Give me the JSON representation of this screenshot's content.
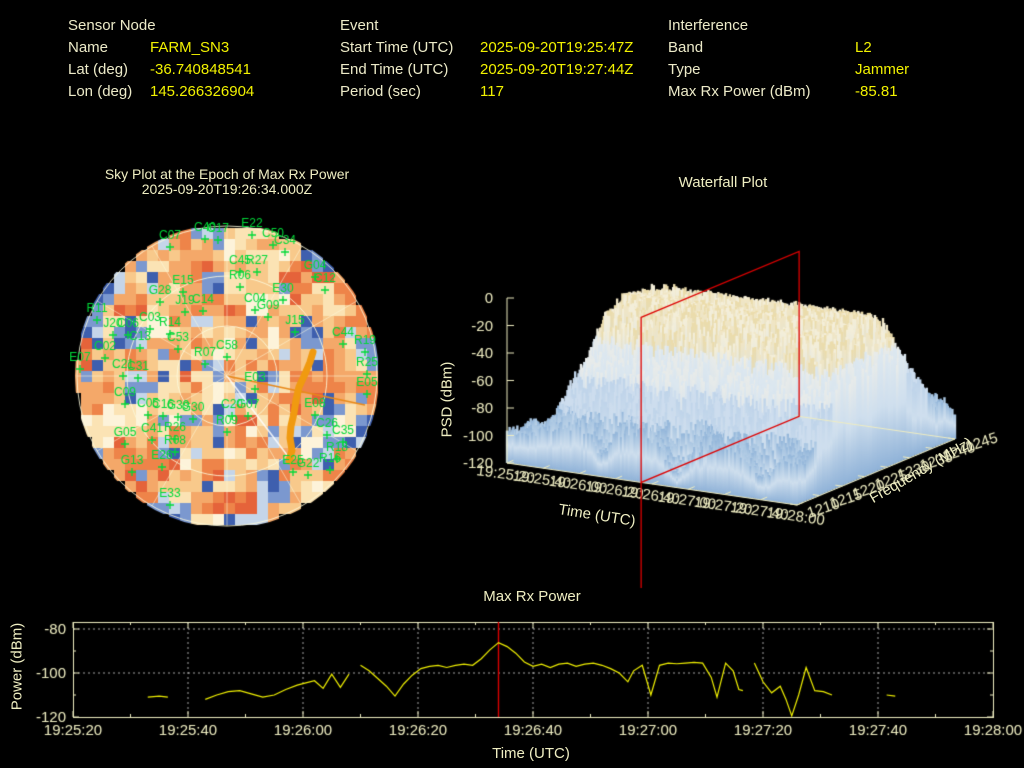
{
  "colors": {
    "background": "#000000",
    "text": "#efeec2",
    "value": "#f2f200",
    "satellite_label": "#00d938",
    "series_line": "#f0f000",
    "epoch_marker": "#dd0000",
    "trail": "#f09a10",
    "surface_low": "#8fb2d8",
    "surface_high": "#f1e6c4"
  },
  "header": {
    "sensor": {
      "title": "Sensor Node",
      "rows": [
        {
          "label": "Name",
          "value": "FARM_SN3"
        },
        {
          "label": "Lat (deg)",
          "value": "-36.740848541"
        },
        {
          "label": "Lon (deg)",
          "value": "145.266326904"
        }
      ]
    },
    "event": {
      "title": "Event",
      "rows": [
        {
          "label": "Start Time (UTC)",
          "value": "2025-09-20T19:25:47Z"
        },
        {
          "label": "End Time (UTC)",
          "value": "2025-09-20T19:27:44Z"
        },
        {
          "label": "Period (sec)",
          "value": "117"
        }
      ]
    },
    "interference": {
      "title": "Interference",
      "rows": [
        {
          "label": "Band",
          "value": "L2"
        },
        {
          "label": "Type",
          "value": "Jammer"
        },
        {
          "label": "Max Rx Power (dBm)",
          "value": "-85.81"
        }
      ]
    }
  },
  "skyplot": {
    "title_line1": "Sky Plot at the Epoch of Max Rx Power",
    "title_line2": "2025-09-20T19:26:34.000Z"
  },
  "waterfall": {
    "title": "Waterfall Plot",
    "ylabel": "PSD (dBm)",
    "xlabel": "Time (UTC)",
    "zlabel": "Frequency (MHz)"
  },
  "bottom": {
    "title": "Max Rx Power",
    "ylabel": "Power (dBm)",
    "xlabel": "Time (UTC)"
  },
  "chart_data": [
    {
      "name": "sky_plot",
      "type": "polar-heatmap",
      "title": "Sky Plot at the Epoch of Max Rx Power",
      "subtitle": "2025-09-20T19:26:34.000Z",
      "elevation_rings_deg": [
        30,
        60
      ],
      "azimuth_spokes_deg": 30,
      "satellites": [
        {
          "id": "C07",
          "x": 100,
          "y": 18
        },
        {
          "id": "C40",
          "x": 135,
          "y": 10
        },
        {
          "id": "C17",
          "x": 148,
          "y": 11
        },
        {
          "id": "E22",
          "x": 182,
          "y": 6
        },
        {
          "id": "C50",
          "x": 203,
          "y": 16
        },
        {
          "id": "C34",
          "x": 215,
          "y": 23
        },
        {
          "id": "C45",
          "x": 170,
          "y": 43
        },
        {
          "id": "R27",
          "x": 187,
          "y": 43
        },
        {
          "id": "R06",
          "x": 170,
          "y": 58
        },
        {
          "id": "E15",
          "x": 113,
          "y": 63
        },
        {
          "id": "G28",
          "x": 90,
          "y": 73
        },
        {
          "id": "J19",
          "x": 115,
          "y": 83
        },
        {
          "id": "C14",
          "x": 133,
          "y": 82
        },
        {
          "id": "G04",
          "x": 245,
          "y": 48
        },
        {
          "id": "C12",
          "x": 255,
          "y": 61
        },
        {
          "id": "E30",
          "x": 213,
          "y": 71
        },
        {
          "id": "C04",
          "x": 185,
          "y": 81
        },
        {
          "id": "G09",
          "x": 198,
          "y": 88
        },
        {
          "id": "J15",
          "x": 225,
          "y": 103
        },
        {
          "id": "R11",
          "x": 27,
          "y": 91
        },
        {
          "id": "J20",
          "x": 43,
          "y": 106
        },
        {
          "id": "C06",
          "x": 58,
          "y": 106
        },
        {
          "id": "C03",
          "x": 80,
          "y": 100
        },
        {
          "id": "R14",
          "x": 100,
          "y": 105
        },
        {
          "id": "C02",
          "x": 35,
          "y": 129
        },
        {
          "id": "E07",
          "x": 10,
          "y": 140
        },
        {
          "id": "C13",
          "x": 70,
          "y": 119
        },
        {
          "id": "C53",
          "x": 108,
          "y": 120
        },
        {
          "id": "C21",
          "x": 53,
          "y": 147
        },
        {
          "id": "C31",
          "x": 68,
          "y": 149
        },
        {
          "id": "R07",
          "x": 135,
          "y": 135
        },
        {
          "id": "C58",
          "x": 157,
          "y": 128
        },
        {
          "id": "E03",
          "x": 185,
          "y": 160
        },
        {
          "id": "E05",
          "x": 297,
          "y": 165
        },
        {
          "id": "C44",
          "x": 273,
          "y": 115
        },
        {
          "id": "R19",
          "x": 295,
          "y": 123
        },
        {
          "id": "R25",
          "x": 297,
          "y": 145
        },
        {
          "id": "C20",
          "x": 162,
          "y": 187
        },
        {
          "id": "G07",
          "x": 178,
          "y": 187
        },
        {
          "id": "E08",
          "x": 245,
          "y": 186
        },
        {
          "id": "R09",
          "x": 157,
          "y": 203
        },
        {
          "id": "C26",
          "x": 257,
          "y": 206
        },
        {
          "id": "C35",
          "x": 273,
          "y": 213
        },
        {
          "id": "R18",
          "x": 267,
          "y": 230
        },
        {
          "id": "R16",
          "x": 260,
          "y": 241
        },
        {
          "id": "E25",
          "x": 223,
          "y": 243
        },
        {
          "id": "G22",
          "x": 238,
          "y": 246
        },
        {
          "id": "C09",
          "x": 55,
          "y": 175
        },
        {
          "id": "C05",
          "x": 78,
          "y": 186
        },
        {
          "id": "C16",
          "x": 93,
          "y": 187
        },
        {
          "id": "G39",
          "x": 108,
          "y": 188
        },
        {
          "id": "G30",
          "x": 123,
          "y": 190
        },
        {
          "id": "G05",
          "x": 55,
          "y": 215
        },
        {
          "id": "C41",
          "x": 82,
          "y": 211
        },
        {
          "id": "R26",
          "x": 105,
          "y": 210
        },
        {
          "id": "R08",
          "x": 105,
          "y": 223
        },
        {
          "id": "E26",
          "x": 92,
          "y": 238
        },
        {
          "id": "G13",
          "x": 62,
          "y": 243
        },
        {
          "id": "E33",
          "x": 100,
          "y": 276
        }
      ],
      "jammer_trail": [
        [
          243,
          135
        ],
        [
          240,
          145
        ],
        [
          235,
          157
        ],
        [
          229,
          170
        ],
        [
          226,
          183
        ],
        [
          224,
          196
        ],
        [
          221,
          209
        ],
        [
          220,
          221
        ],
        [
          222,
          233
        ],
        [
          219,
          244
        ]
      ],
      "bearing_line_end": [
        295,
        188
      ],
      "white_line_end": [
        217,
        238
      ]
    },
    {
      "name": "waterfall",
      "type": "surface",
      "title": "Waterfall Plot",
      "xlabel": "Time (UTC)",
      "ylabel": "PSD (dBm)",
      "zlabel": "Frequency (MHz)",
      "psd_ticks": [
        0,
        -20,
        -40,
        -60,
        -80,
        -100,
        -120
      ],
      "time_ticks": [
        "19:25:20",
        "19:25:40",
        "19:26:00",
        "19:26:20",
        "19:26:40",
        "19:27:00",
        "19:27:20",
        "19:27:40",
        "19:28:00"
      ],
      "freq_ticks": [
        1210,
        1215,
        1220,
        1225,
        1230,
        1235,
        1240,
        1245
      ],
      "psd_range": [
        -120,
        0
      ],
      "noise_floor_dbm": -103,
      "plateau_peak_dbm": -15,
      "occupied_band_mhz": [
        1213,
        1242
      ],
      "slice_time": "19:26:34",
      "slice_time_frac": 0.4625
    },
    {
      "name": "max_rx_power",
      "type": "line",
      "title": "Max Rx Power",
      "xlabel": "Time (UTC)",
      "ylabel": "Power (dBm)",
      "x_start": "19:25:20",
      "x_end": "19:28:00",
      "xticks": [
        "19:25:20",
        "19:25:40",
        "19:26:00",
        "19:26:20",
        "19:26:40",
        "19:27:00",
        "19:27:20",
        "19:27:40",
        "19:28:00"
      ],
      "yticks": [
        -80,
        -100,
        -120
      ],
      "ylim": [
        -120,
        -76.8
      ],
      "x_span_sec": 160,
      "marker_time": "19:26:34",
      "marker_offset_sec": 74,
      "marker_value_dbm": -85.81,
      "points": [
        [
          13,
          -111
        ],
        [
          15,
          -110.5
        ],
        [
          16.5,
          -111
        ],
        null,
        [
          23,
          -112
        ],
        [
          25,
          -110
        ],
        [
          27,
          -108.5
        ],
        [
          29,
          -108
        ],
        [
          31,
          -109.5
        ],
        [
          33,
          -111
        ],
        [
          35,
          -110
        ],
        [
          37,
          -107.5
        ],
        [
          39,
          -105.5
        ],
        [
          40.5,
          -104.5
        ],
        [
          42,
          -103.5
        ],
        [
          43.5,
          -107
        ],
        [
          45,
          -100.5
        ],
        [
          46.5,
          -106.5
        ],
        [
          48,
          -100.5
        ],
        null,
        [
          50,
          -96.5
        ],
        [
          51.5,
          -99
        ],
        [
          53,
          -102.5
        ],
        [
          54.5,
          -106
        ],
        [
          56,
          -110.5
        ],
        [
          57.5,
          -105
        ],
        [
          59,
          -101
        ],
        [
          60.5,
          -98
        ],
        [
          62,
          -97
        ],
        [
          63.5,
          -96.5
        ],
        [
          65,
          -97.5
        ],
        [
          66.5,
          -96.5
        ],
        [
          68,
          -96
        ],
        [
          69.5,
          -96.5
        ],
        [
          71,
          -93.5
        ],
        [
          72.5,
          -89.5
        ],
        [
          74,
          -86.2
        ],
        [
          75.5,
          -88
        ],
        [
          77,
          -91
        ],
        [
          78.5,
          -95
        ],
        [
          80,
          -97
        ],
        [
          81.5,
          -96
        ],
        [
          83,
          -97.5
        ],
        [
          84.5,
          -96
        ],
        [
          86,
          -95.5
        ],
        [
          87.5,
          -97
        ],
        [
          89,
          -96
        ],
        [
          90.5,
          -95.5
        ],
        [
          92,
          -96.5
        ],
        [
          93.5,
          -98
        ],
        [
          95,
          -100
        ],
        [
          96.5,
          -104
        ],
        [
          97.5,
          -99
        ],
        [
          99,
          -96.5
        ],
        [
          100.5,
          -110
        ],
        [
          102,
          -96.5
        ],
        [
          103.5,
          -95.5
        ],
        [
          105,
          -95.8
        ],
        [
          106.5,
          -95.5
        ],
        [
          108,
          -95.2
        ],
        [
          109.5,
          -95.5
        ],
        [
          111,
          -102
        ],
        [
          112,
          -111
        ],
        [
          113.5,
          -95.5
        ],
        [
          114.8,
          -99
        ],
        [
          115.8,
          -107.5
        ],
        [
          116.5,
          -108
        ],
        null,
        [
          118.5,
          -95.5
        ],
        [
          120,
          -104
        ],
        [
          121.5,
          -109
        ],
        [
          123,
          -106
        ],
        [
          124,
          -112
        ],
        [
          125,
          -119.5
        ],
        [
          126.2,
          -110
        ],
        [
          127.5,
          -97.5
        ],
        [
          129,
          -108
        ],
        [
          130.5,
          -108.5
        ],
        [
          132,
          -110
        ],
        null,
        [
          141.5,
          -110
        ],
        [
          143,
          -110.5
        ]
      ]
    }
  ]
}
